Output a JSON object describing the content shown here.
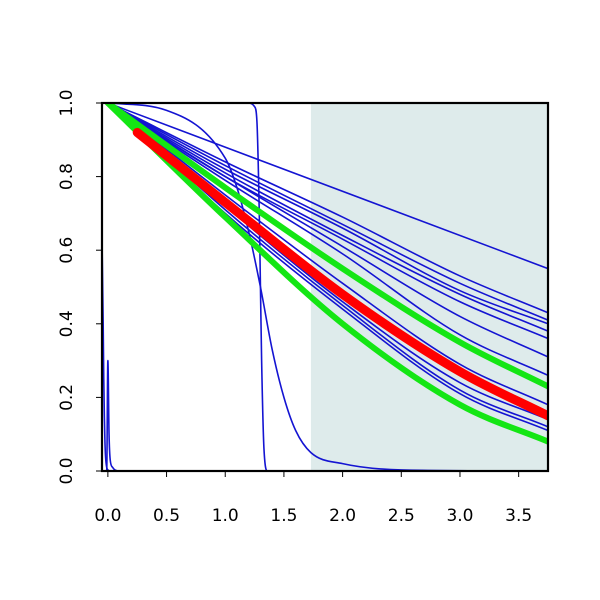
{
  "chart_data": {
    "type": "line",
    "title": "",
    "xlabel": "",
    "ylabel": "",
    "xlim": [
      -0.05,
      3.75
    ],
    "ylim": [
      0.0,
      1.0
    ],
    "grid": false,
    "legend": "none",
    "x_ticks": [
      "0.0",
      "0.5",
      "1.0",
      "1.5",
      "2.0",
      "2.5",
      "3.0",
      "3.5"
    ],
    "y_ticks": [
      "0.0",
      "0.2",
      "0.4",
      "0.6",
      "0.8",
      "1.0"
    ],
    "shaded_region": {
      "x_from": 1.73,
      "x_to": 3.75,
      "color": "#deebeb"
    },
    "colors": {
      "blue": "#1414d2",
      "green": "#14e614",
      "red": "#ff0000",
      "frame": "#000000"
    },
    "series": [
      {
        "color": "blue",
        "width": 1.6,
        "x": [
          0,
          3.75
        ],
        "y": [
          1.0,
          0.55
        ]
      },
      {
        "color": "blue",
        "width": 1.6,
        "x": [
          0,
          1.0,
          2.0,
          3.0,
          3.75
        ],
        "y": [
          1.0,
          0.84,
          0.69,
          0.53,
          0.43
        ]
      },
      {
        "color": "blue",
        "width": 1.6,
        "x": [
          0,
          1.0,
          2.0,
          3.0,
          3.75
        ],
        "y": [
          1.0,
          0.83,
          0.67,
          0.51,
          0.41
        ]
      },
      {
        "color": "blue",
        "width": 1.6,
        "x": [
          0,
          1.0,
          2.0,
          3.0,
          3.75
        ],
        "y": [
          1.0,
          0.82,
          0.66,
          0.49,
          0.4
        ]
      },
      {
        "color": "blue",
        "width": 1.6,
        "x": [
          0,
          1.0,
          2.0,
          3.0,
          3.75
        ],
        "y": [
          1.0,
          0.81,
          0.64,
          0.48,
          0.38
        ]
      },
      {
        "color": "blue",
        "width": 1.6,
        "x": [
          0,
          1.0,
          2.0,
          3.0,
          3.75
        ],
        "y": [
          1.0,
          0.8,
          0.63,
          0.46,
          0.36
        ]
      },
      {
        "color": "blue",
        "width": 1.6,
        "x": [
          0,
          1.0,
          2.0,
          3.0,
          3.75
        ],
        "y": [
          1.0,
          0.8,
          0.61,
          0.42,
          0.31
        ]
      },
      {
        "color": "blue",
        "width": 1.6,
        "x": [
          0,
          1.0,
          2.0,
          3.0,
          3.75
        ],
        "y": [
          1.0,
          0.79,
          0.59,
          0.37,
          0.26
        ]
      },
      {
        "color": "blue",
        "width": 1.6,
        "x": [
          0,
          1.0,
          2.0,
          3.0,
          3.75
        ],
        "y": [
          1.0,
          0.75,
          0.51,
          0.29,
          0.18
        ]
      },
      {
        "color": "blue",
        "width": 1.6,
        "x": [
          0,
          1.0,
          2.0,
          3.0,
          3.75
        ],
        "y": [
          1.0,
          0.74,
          0.49,
          0.27,
          0.16
        ]
      },
      {
        "color": "blue",
        "width": 1.6,
        "x": [
          0,
          1.0,
          2.0,
          3.0,
          3.75
        ],
        "y": [
          1.0,
          0.73,
          0.48,
          0.26,
          0.15
        ]
      },
      {
        "color": "blue",
        "width": 1.6,
        "x": [
          0,
          1.0,
          2.0,
          3.0,
          3.75
        ],
        "y": [
          1.0,
          0.72,
          0.46,
          0.24,
          0.14
        ]
      },
      {
        "color": "blue",
        "width": 1.6,
        "x": [
          0,
          1.0,
          2.0,
          3.0,
          3.75
        ],
        "y": [
          1.0,
          0.71,
          0.45,
          0.22,
          0.12
        ]
      },
      {
        "color": "blue",
        "width": 1.6,
        "x": [
          0,
          1.0,
          2.0,
          3.0,
          3.75
        ],
        "y": [
          1.0,
          0.7,
          0.44,
          0.21,
          0.11
        ]
      },
      {
        "color": "blue",
        "width": 1.6,
        "x": [
          0,
          0.5,
          1.0,
          1.1,
          1.2,
          1.3,
          1.4,
          1.5,
          1.6,
          1.73,
          2.0,
          2.5,
          3.75
        ],
        "y": [
          1.0,
          0.98,
          0.85,
          0.77,
          0.65,
          0.5,
          0.33,
          0.2,
          0.11,
          0.05,
          0.02,
          0.003,
          0.0
        ]
      },
      {
        "color": "blue",
        "width": 1.6,
        "x": [
          0,
          1.2,
          1.25,
          1.27,
          1.29,
          1.3,
          1.31,
          1.33,
          1.36,
          3.75
        ],
        "y": [
          1.0,
          1.0,
          0.99,
          0.95,
          0.7,
          0.5,
          0.3,
          0.06,
          0.0,
          0.0
        ]
      },
      {
        "color": "blue",
        "width": 1.6,
        "x": [
          -0.05,
          -0.04,
          -0.035,
          -0.03,
          -0.025,
          -0.02,
          -0.01,
          0.0,
          0.02,
          3.75
        ],
        "y": [
          0.63,
          0.4,
          0.25,
          0.15,
          0.08,
          0.04,
          0.01,
          0.003,
          0.0,
          0.0
        ]
      },
      {
        "color": "blue",
        "width": 1.6,
        "x": [
          -0.05,
          -0.01,
          0.0,
          0.01,
          0.02,
          0.04,
          0.06,
          0.1,
          3.75
        ],
        "y": [
          0.0,
          0.0,
          0.3,
          0.1,
          0.03,
          0.01,
          0.003,
          0.0,
          0.0
        ]
      },
      {
        "color": "green",
        "width": 6,
        "x": [
          0,
          1.0,
          2.0,
          3.0,
          3.75
        ],
        "y": [
          1.0,
          0.77,
          0.55,
          0.35,
          0.23
        ]
      },
      {
        "color": "green",
        "width": 6,
        "x": [
          0,
          1.0,
          2.0,
          3.0,
          3.75
        ],
        "y": [
          1.0,
          0.69,
          0.4,
          0.18,
          0.08
        ]
      },
      {
        "color": "red",
        "width": 9,
        "x": [
          0.25,
          1.0,
          2.0,
          3.0,
          3.75
        ],
        "y": [
          0.92,
          0.73,
          0.48,
          0.27,
          0.15
        ]
      }
    ]
  }
}
